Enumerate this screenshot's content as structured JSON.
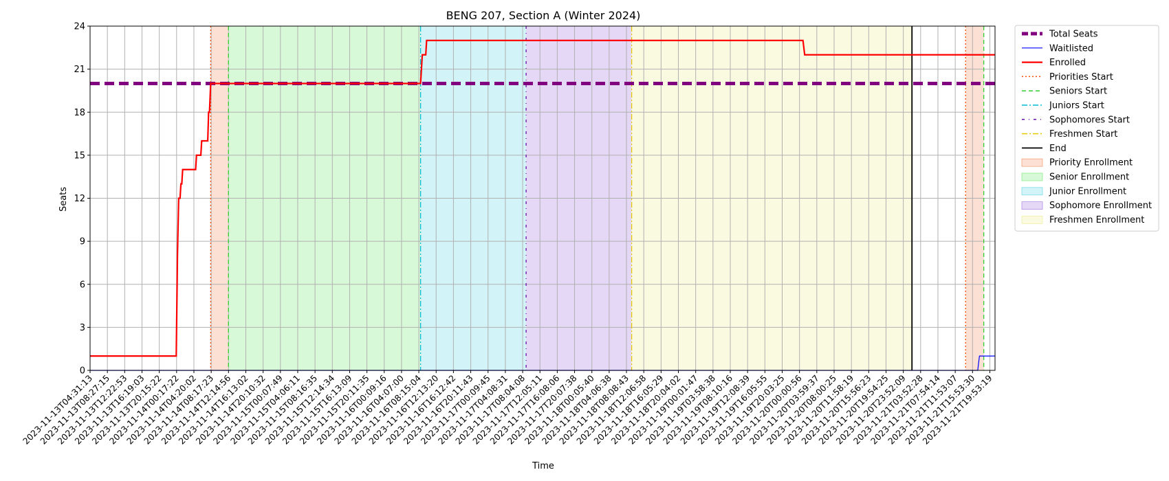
{
  "chart_data": {
    "type": "line",
    "title": "BENG 207, Section A (Winter 2024)",
    "xlabel": "Time",
    "ylabel": "Seats",
    "ylim": [
      0,
      24
    ],
    "yticks": [
      0,
      3,
      6,
      9,
      12,
      15,
      18,
      21,
      24
    ],
    "grid": true,
    "legend_position": "outside-right",
    "xticks": [
      "2023-11-13T04:31:13",
      "2023-11-13T08:27:15",
      "2023-11-13T12:22:53",
      "2023-11-13T16:19:03",
      "2023-11-13T20:15:22",
      "2023-11-14T00:17:22",
      "2023-11-14T04:20:02",
      "2023-11-14T08:17:23",
      "2023-11-14T12:14:56",
      "2023-11-14T16:13:02",
      "2023-11-14T20:10:32",
      "2023-11-15T00:07:49",
      "2023-11-15T04:06:11",
      "2023-11-15T08:16:35",
      "2023-11-15T12:14:34",
      "2023-11-15T16:13:09",
      "2023-11-15T20:11:35",
      "2023-11-16T00:09:16",
      "2023-11-16T04:07:00",
      "2023-11-16T08:15:04",
      "2023-11-16T12:13:20",
      "2023-11-16T16:12:42",
      "2023-11-16T20:11:43",
      "2023-11-17T00:09:45",
      "2023-11-17T04:08:31",
      "2023-11-17T08:04:08",
      "2023-11-17T12:05:11",
      "2023-11-17T16:08:06",
      "2023-11-17T20:07:38",
      "2023-11-18T00:05:40",
      "2023-11-18T04:06:38",
      "2023-11-18T08:08:43",
      "2023-11-18T12:06:58",
      "2023-11-18T16:05:29",
      "2023-11-18T20:04:02",
      "2023-11-19T00:01:47",
      "2023-11-19T03:58:38",
      "2023-11-19T08:10:16",
      "2023-11-19T12:08:39",
      "2023-11-19T16:05:55",
      "2023-11-19T20:03:25",
      "2023-11-20T00:00:56",
      "2023-11-20T03:59:37",
      "2023-11-20T08:00:25",
      "2023-11-20T11:58:19",
      "2023-11-20T15:56:23",
      "2023-11-20T19:54:25",
      "2023-11-20T23:52:09",
      "2023-11-21T03:52:28",
      "2023-11-21T07:54:14",
      "2023-11-21T11:53:07",
      "2023-11-21T15:53:30",
      "2023-11-21T19:53:19"
    ],
    "x_range_index": [
      0,
      52.3
    ],
    "series": [
      {
        "name": "Total Seats",
        "color": "#800080",
        "style": "dashed-thick",
        "points": [
          [
            0,
            20
          ],
          [
            52.3,
            20
          ]
        ]
      },
      {
        "name": "Waitlisted",
        "color": "#0000ff",
        "style": "solid-thin",
        "points": [
          [
            0,
            0
          ],
          [
            51.3,
            0
          ],
          [
            51.4,
            1
          ],
          [
            52.3,
            1
          ]
        ]
      },
      {
        "name": "Enrolled",
        "color": "#ff0000",
        "style": "solid",
        "points": [
          [
            0,
            1
          ],
          [
            4.98,
            1
          ],
          [
            5.05,
            8
          ],
          [
            5.12,
            12
          ],
          [
            5.2,
            12
          ],
          [
            5.25,
            13
          ],
          [
            5.3,
            13
          ],
          [
            5.35,
            14
          ],
          [
            6.1,
            14
          ],
          [
            6.15,
            15
          ],
          [
            6.4,
            15
          ],
          [
            6.45,
            16
          ],
          [
            6.8,
            16
          ],
          [
            6.85,
            18
          ],
          [
            6.9,
            18
          ],
          [
            6.97,
            20
          ],
          [
            19.1,
            20
          ],
          [
            19.2,
            22
          ],
          [
            19.4,
            22
          ],
          [
            19.45,
            23
          ],
          [
            41.2,
            23
          ],
          [
            41.3,
            22
          ],
          [
            52.3,
            22
          ]
        ]
      }
    ],
    "markers": [
      {
        "name": "Priorities Start",
        "color": "#ff4500",
        "style": "dotted",
        "x_index": [
          6.97,
          50.6
        ]
      },
      {
        "name": "Seniors Start",
        "color": "#32cd32",
        "style": "dashed",
        "x_index": [
          8.0,
          51.65
        ]
      },
      {
        "name": "Juniors Start",
        "color": "#00bcd4",
        "style": "dashdot",
        "x_index": [
          19.1
        ]
      },
      {
        "name": "Sophomores Start",
        "color": "#6a0dad",
        "style": "loosely-dashdot",
        "x_index": [
          25.2
        ]
      },
      {
        "name": "Freshmen Start",
        "color": "#e6c800",
        "style": "dashdot-yellow",
        "x_index": [
          31.3
        ]
      },
      {
        "name": "End",
        "color": "#000000",
        "style": "solid",
        "x_index": [
          47.5
        ]
      }
    ],
    "regions": [
      {
        "name": "Priority Enrollment",
        "color": "#f4a582",
        "ranges": [
          [
            6.97,
            8.0
          ],
          [
            50.6,
            51.65
          ]
        ]
      },
      {
        "name": "Senior Enrollment",
        "color": "#90ee90",
        "ranges": [
          [
            8.0,
            19.1
          ]
        ]
      },
      {
        "name": "Junior Enrollment",
        "color": "#7fdee8",
        "ranges": [
          [
            19.1,
            25.2
          ]
        ]
      },
      {
        "name": "Sophomore Enrollment",
        "color": "#b590e6",
        "ranges": [
          [
            25.2,
            31.3
          ]
        ]
      },
      {
        "name": "Freshmen Enrollment",
        "color": "#f0f0a6",
        "ranges": [
          [
            31.3,
            47.5
          ]
        ]
      }
    ]
  }
}
